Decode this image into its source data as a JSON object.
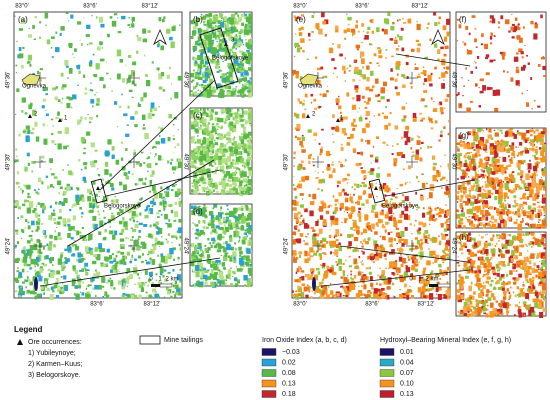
{
  "coords": {
    "longitudes": [
      "83°0'",
      "83°6'",
      "83°12'"
    ],
    "latitudes": [
      "49°36'",
      "49°30'",
      "49°24'"
    ]
  },
  "map_left": {
    "panel": "(a)",
    "places": [
      "Ognevka",
      "Belogorskoye"
    ],
    "occurrence_numbers": [
      "1",
      "2",
      "3"
    ],
    "scale": [
      "0",
      "1",
      "2 km"
    ]
  },
  "map_right": {
    "panel": "(e)",
    "places": [
      "Ognevka",
      "Belogorskoye"
    ],
    "occurrence_numbers": [
      "1",
      "2",
      "3"
    ],
    "scale": [
      "0",
      "1",
      "2 km"
    ]
  },
  "insets": {
    "labels": [
      "(b)",
      "(c)",
      "(d)",
      "(f)",
      "(g)",
      "(h)"
    ],
    "b_place": "Belogorskoye",
    "b_number": "3"
  },
  "legend": {
    "title": "Legend",
    "ore_title": "Ore occurrences:",
    "ores": [
      "1) Yubileynoye;",
      "2) Karmen–Kuus;",
      "3) Belogorskoye."
    ],
    "mine": "Mine tailings",
    "iron": {
      "title": "Iron Oxide Index (a, b, c, d)",
      "items": [
        {
          "label": "−0.03",
          "color": "#1b1464"
        },
        {
          "label": "0.02",
          "color": "#2aa0d8"
        },
        {
          "label": "0.08",
          "color": "#58b947"
        },
        {
          "label": "0.13",
          "color": "#f7941d"
        },
        {
          "label": "0.18",
          "color": "#c1272d"
        }
      ]
    },
    "hydroxyl": {
      "title": "Hydroxyl–Bearing Mineral Index (e, f, g, h)",
      "items": [
        {
          "label": "0.01",
          "color": "#1b1464"
        },
        {
          "label": "0.04",
          "color": "#2aa9c5"
        },
        {
          "label": "0.07",
          "color": "#8dc63f"
        },
        {
          "label": "0.10",
          "color": "#f7941d"
        },
        {
          "label": "0.13",
          "color": "#be1e2d"
        }
      ]
    }
  }
}
